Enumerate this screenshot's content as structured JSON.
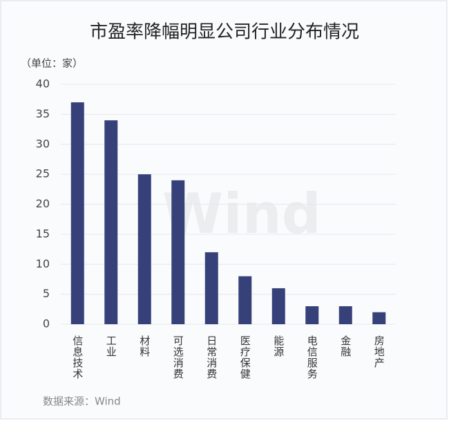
{
  "chart_data": {
    "type": "bar",
    "title": "市盈率降幅明显公司行业分布情况",
    "unit_label": "（单位：家）",
    "categories": [
      "信息技术",
      "工业",
      "材料",
      "可选消费",
      "日常消费",
      "医疗保健",
      "能源",
      "电信服务",
      "金融",
      "房地产"
    ],
    "values": [
      37,
      34,
      25,
      24,
      12,
      8,
      6,
      3,
      3,
      2
    ],
    "color": "#36417a",
    "ylim": [
      0,
      40
    ],
    "yticks": [
      0,
      5,
      10,
      15,
      20,
      25,
      30,
      35,
      40
    ],
    "grid": true,
    "source": "数据来源：Wind",
    "watermark": "Wind"
  }
}
